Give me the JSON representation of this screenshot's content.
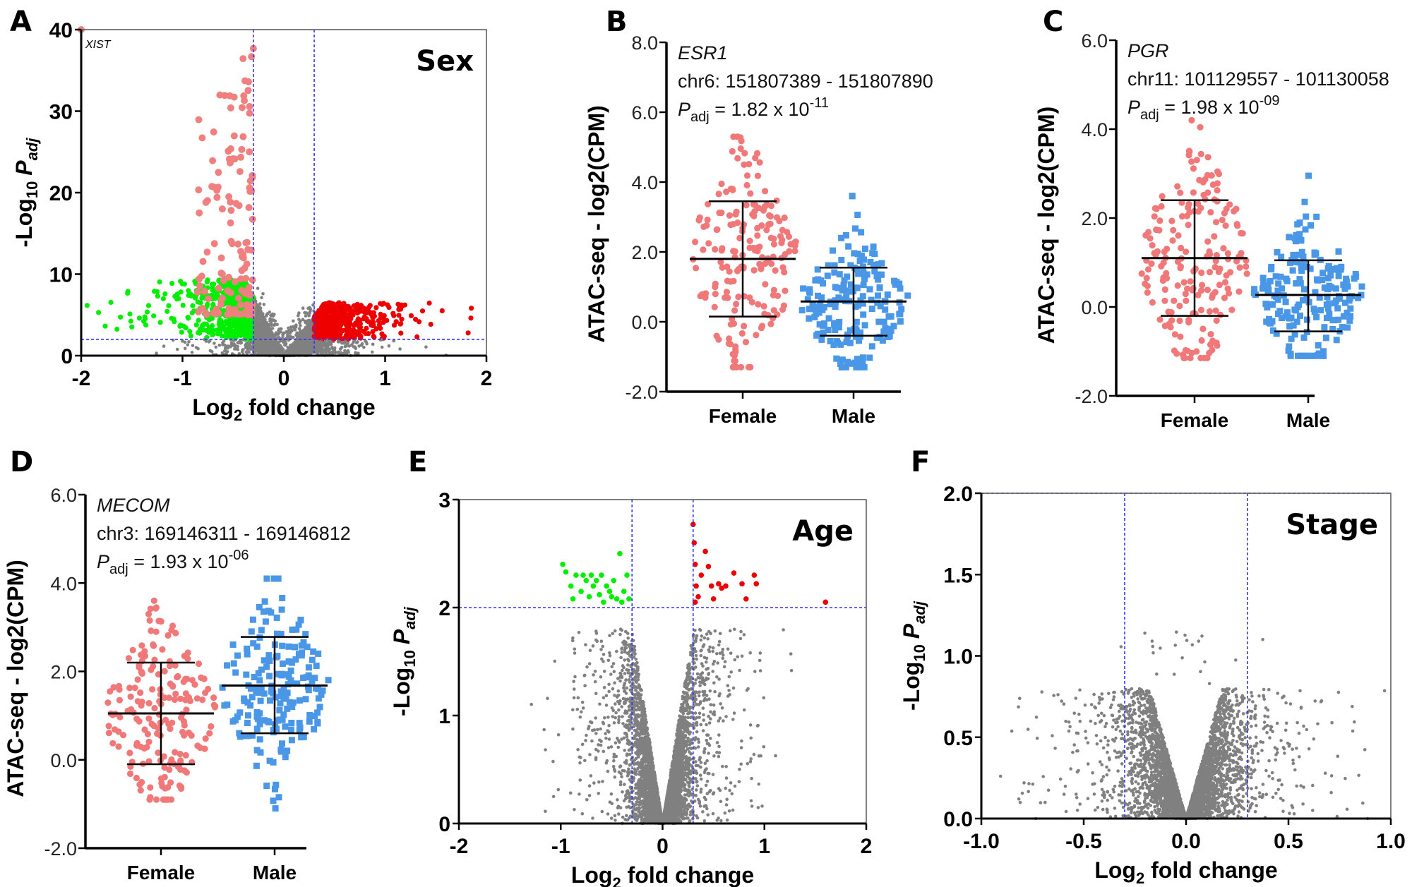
{
  "chart_data": [
    {
      "panel_label": "A",
      "type": "scatter",
      "condition": "Sex",
      "xlabel": {
        "t1": "Log",
        "sub": "2",
        "t2": " fold change"
      },
      "ylabel": {
        "t1": "-Log",
        "sub": "10",
        "var": "P",
        "var_sub": "adj"
      },
      "xlim": [
        -2,
        2
      ],
      "ylim": [
        0,
        40
      ],
      "xticks": [
        "-2",
        "-1",
        "0",
        "1",
        "2"
      ],
      "yticks": [
        "0",
        "10",
        "20",
        "30",
        "40"
      ],
      "thresholds": {
        "log2fc": [
          -0.3,
          0.3
        ],
        "neg_log10_padj": 2
      },
      "annotations": [
        {
          "text": "XIST",
          "x": -2,
          "y": 40
        }
      ],
      "colors": {
        "ns": "#808080",
        "down": "#00ee00",
        "up": "#ee0000",
        "top": "#f08080",
        "threshold": "#3333ff"
      }
    },
    {
      "panel_label": "B",
      "type": "dotplot",
      "gene": "ESR1",
      "region": "chr6: 151807389 - 151807890",
      "padj": {
        "var": "P",
        "sub": "adj",
        "text": " = 1.82 x 10",
        "exp": "-11"
      },
      "ylabel": "ATAC-seq -  log2(CPM)",
      "ylim": [
        -2,
        8
      ],
      "yticks": [
        "-2.0",
        "0.0",
        "2.0",
        "4.0",
        "6.0",
        "8.0"
      ],
      "categories": [
        "Female",
        "Male"
      ],
      "series": [
        {
          "name": "Female",
          "mean": 1.8,
          "sd_low": 0.15,
          "sd_high": 3.45,
          "min": -1.3,
          "max": 5.3,
          "color": "#f07878",
          "marker": "circle"
        },
        {
          "name": "Male",
          "mean": 0.58,
          "sd_low": -0.4,
          "sd_high": 1.55,
          "min": -1.3,
          "max": 3.6,
          "color": "#4a97e8",
          "marker": "square"
        }
      ]
    },
    {
      "panel_label": "C",
      "type": "dotplot",
      "gene": "PGR",
      "region": "chr11: 101129557 - 101130058",
      "padj": {
        "var": "P",
        "sub": "adj",
        "text": " = 1.98 x 10",
        "exp": "-09"
      },
      "ylabel": "ATAC-seq -  log2(CPM)",
      "ylim": [
        -2,
        6
      ],
      "yticks": [
        "-2.0",
        "0.0",
        "2.0",
        "4.0",
        "6.0"
      ],
      "categories": [
        "Female",
        "Male"
      ],
      "series": [
        {
          "name": "Female",
          "mean": 1.1,
          "sd_low": -0.2,
          "sd_high": 2.4,
          "min": -1.15,
          "max": 4.2,
          "color": "#f07878",
          "marker": "circle"
        },
        {
          "name": "Male",
          "mean": 0.27,
          "sd_low": -0.55,
          "sd_high": 1.05,
          "min": -1.1,
          "max": 2.95,
          "color": "#4a97e8",
          "marker": "square"
        }
      ]
    },
    {
      "panel_label": "D",
      "type": "dotplot",
      "gene": "MECOM",
      "region": "chr3: 169146311 - 169146812",
      "padj": {
        "var": "P",
        "sub": "adj",
        "text": " = 1.93 x 10",
        "exp": "-06"
      },
      "ylabel": "ATAC-seq -  log2(CPM)",
      "ylim": [
        -2,
        6
      ],
      "yticks": [
        "-2.0",
        "0.0",
        "2.0",
        "4.0",
        "6.0"
      ],
      "categories": [
        "Female",
        "Male"
      ],
      "series": [
        {
          "name": "Female",
          "mean": 1.05,
          "sd_low": -0.1,
          "sd_high": 2.2,
          "min": -0.9,
          "max": 3.6,
          "color": "#f07878",
          "marker": "circle"
        },
        {
          "name": "Male",
          "mean": 1.68,
          "sd_low": 0.6,
          "sd_high": 2.78,
          "min": -1.1,
          "max": 4.1,
          "color": "#4a97e8",
          "marker": "square"
        }
      ]
    },
    {
      "panel_label": "E",
      "type": "scatter",
      "condition": "Age",
      "xlabel": {
        "t1": "Log",
        "sub": "2",
        "t2": " fold change"
      },
      "ylabel": {
        "t1": "-Log",
        "sub": "10",
        "var": "P",
        "var_sub": "adj"
      },
      "xlim": [
        -2,
        2
      ],
      "ylim": [
        0,
        3
      ],
      "xticks": [
        "-2",
        "-1",
        "0",
        "1",
        "2"
      ],
      "yticks": [
        "0",
        "1",
        "2",
        "3"
      ],
      "thresholds": {
        "log2fc": [
          -0.3,
          0.3
        ],
        "neg_log10_padj": 2
      },
      "significant_down": [
        [
          -0.98,
          2.4
        ],
        [
          -0.95,
          2.33
        ],
        [
          -0.9,
          2.2
        ],
        [
          -0.88,
          2.08
        ],
        [
          -0.85,
          2.3
        ],
        [
          -0.8,
          2.15
        ],
        [
          -0.78,
          2.3
        ],
        [
          -0.75,
          2.25
        ],
        [
          -0.72,
          2.1
        ],
        [
          -0.7,
          2.3
        ],
        [
          -0.68,
          2.2
        ],
        [
          -0.65,
          2.25
        ],
        [
          -0.62,
          2.12
        ],
        [
          -0.6,
          2.3
        ],
        [
          -0.58,
          2.05
        ],
        [
          -0.55,
          2.2
        ],
        [
          -0.52,
          2.15
        ],
        [
          -0.5,
          2.1
        ],
        [
          -0.48,
          2.25
        ],
        [
          -0.45,
          2.08
        ],
        [
          -0.42,
          2.5
        ],
        [
          -0.4,
          2.05
        ],
        [
          -0.38,
          2.15
        ],
        [
          -0.35,
          2.3
        ],
        [
          -0.33,
          2.08
        ]
      ],
      "significant_up": [
        [
          0.3,
          2.77
        ],
        [
          0.31,
          2.6
        ],
        [
          0.32,
          2.4
        ],
        [
          0.33,
          2.2
        ],
        [
          0.35,
          2.1
        ],
        [
          0.32,
          2.05
        ],
        [
          0.38,
          2.3
        ],
        [
          0.42,
          2.52
        ],
        [
          0.45,
          2.38
        ],
        [
          0.48,
          2.2
        ],
        [
          0.5,
          2.08
        ],
        [
          0.55,
          2.22
        ],
        [
          0.58,
          2.18
        ],
        [
          0.62,
          2.2
        ],
        [
          0.7,
          2.32
        ],
        [
          0.78,
          2.22
        ],
        [
          0.82,
          2.08
        ],
        [
          0.9,
          2.3
        ],
        [
          0.92,
          2.22
        ],
        [
          1.6,
          2.05
        ]
      ],
      "colors": {
        "ns": "#808080",
        "down": "#00ee00",
        "up": "#ee0000",
        "threshold": "#3333ff"
      }
    },
    {
      "panel_label": "F",
      "type": "scatter",
      "condition": "Stage",
      "xlabel": {
        "t1": "Log",
        "sub": "2",
        "t2": " fold change"
      },
      "ylabel": {
        "t1": "-Log",
        "sub": "10",
        "var": "P",
        "var_sub": "adj"
      },
      "xlim": [
        -1,
        1
      ],
      "ylim": [
        0,
        2
      ],
      "xticks": [
        "-1.0",
        "-0.5",
        "0.0",
        "0.5",
        "1.0"
      ],
      "yticks": [
        "0.0",
        "0.5",
        "1.0",
        "1.5",
        "2.0"
      ],
      "thresholds": {
        "log2fc": [
          -0.3,
          0.3
        ],
        "neg_log10_padj": 2
      },
      "colors": {
        "ns": "#808080",
        "threshold": "#3333ff"
      }
    }
  ]
}
